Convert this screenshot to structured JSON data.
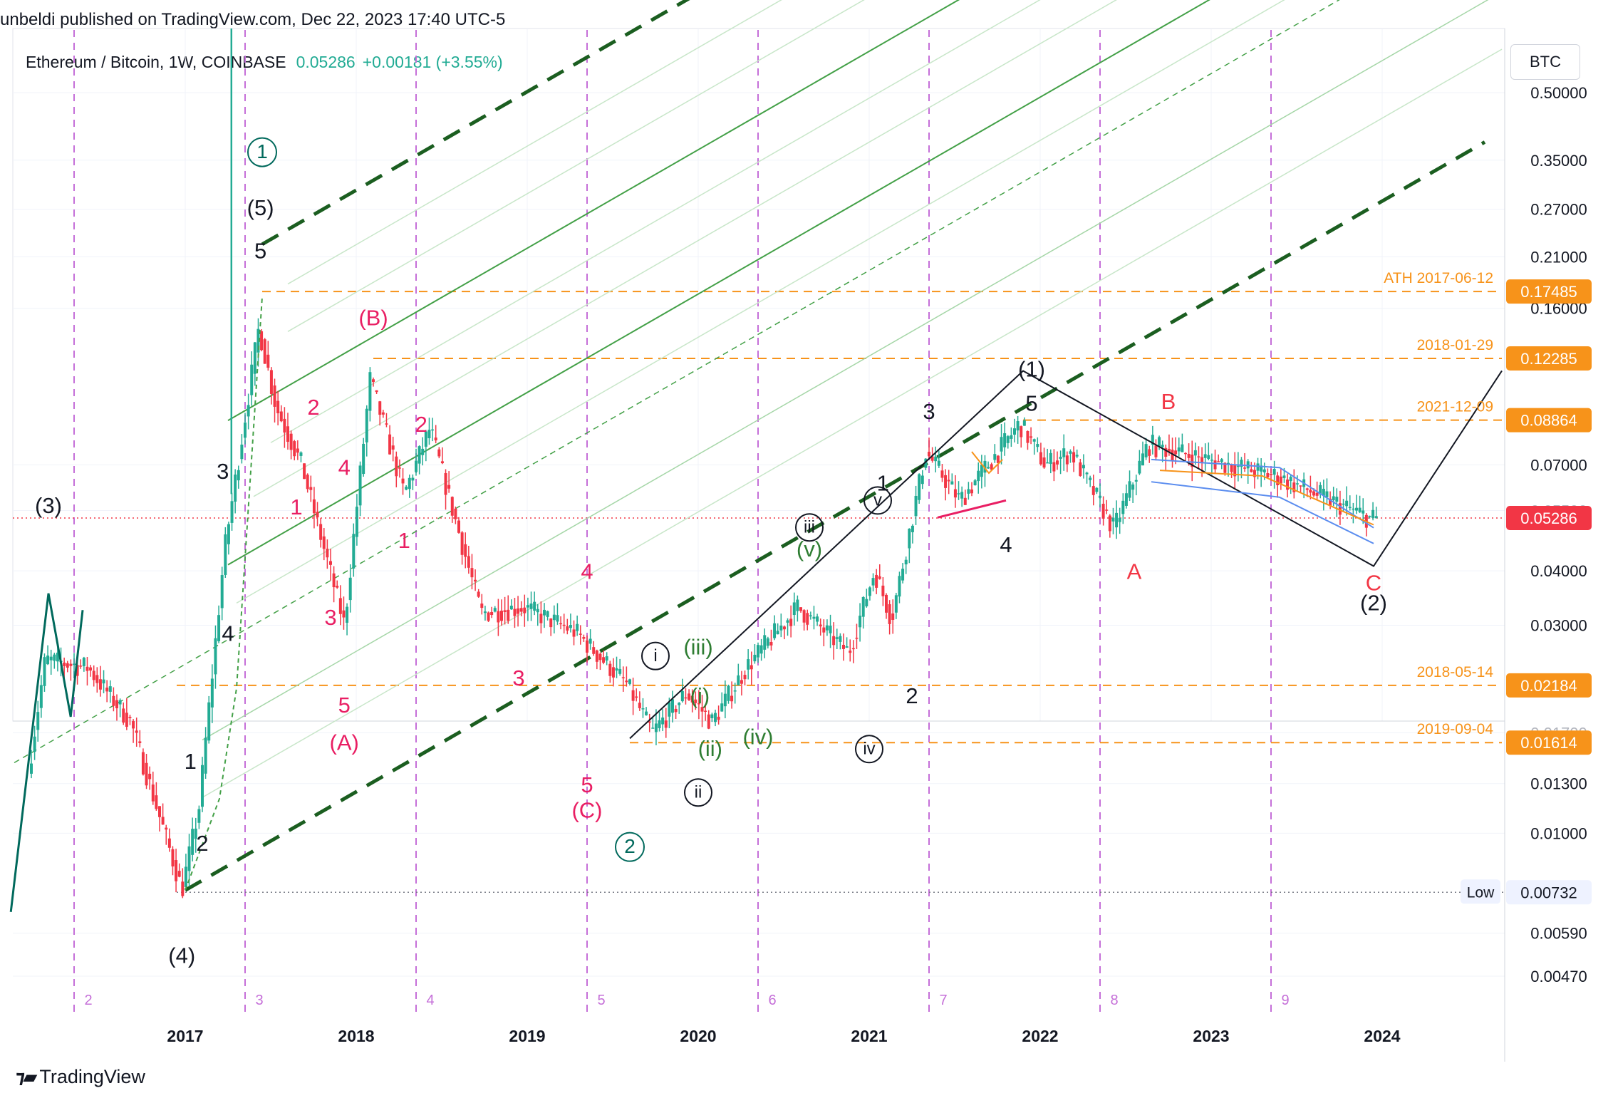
{
  "header": {
    "published": "unbeldi published on TradingView.com, Dec 22, 2023 17:40 UTC-5",
    "symbol": "Ethereum / Bitcoin, 1W, COINBASE",
    "price": "0.05286",
    "change": "+0.00181 (+3.55%)"
  },
  "axis": {
    "currency_button": "BTC"
  },
  "footer": {
    "brand": "TradingView"
  },
  "colors": {
    "up": "#22ab94",
    "down": "#f23645",
    "orange": "#f7931a",
    "dark_green": "#1b5e20",
    "green": "#43a047",
    "magenta": "#e91e63",
    "vline": "#c56fd8",
    "blue": "#5b8def"
  },
  "chart_data": {
    "type": "candlestick",
    "scale": "log",
    "x_ticks": [
      "2017",
      "2018",
      "2019",
      "2020",
      "2021",
      "2022",
      "2023",
      "2024"
    ],
    "y_ticks": [
      "0.50000",
      "0.35000",
      "0.27000",
      "0.21000",
      "0.16000",
      "0.07000",
      "0.04000",
      "0.03000",
      "0.01300",
      "0.01000",
      "0.00590",
      "0.00470"
    ],
    "y_ticks_partial": [
      "0.05500",
      "0.01700"
    ],
    "y_tick_values": [
      0.5,
      0.35,
      0.27,
      0.21,
      0.16,
      0.07,
      0.04,
      0.03,
      0.013,
      0.01,
      0.0059,
      0.0047,
      0.055,
      0.017
    ],
    "price_labels": [
      {
        "value": "0.17485",
        "note": "ATH 2017-06-12"
      },
      {
        "value": "0.12285",
        "note": "2018-01-29"
      },
      {
        "value": "0.08864",
        "note": "2021-12-09"
      },
      {
        "value": "0.02184",
        "note": "2018-05-14"
      },
      {
        "value": "0.01614",
        "note": "2019-09-04"
      }
    ],
    "current": {
      "label": "0.05286",
      "value": 0.05286
    },
    "low": {
      "tag": "Low",
      "value": "0.00732"
    },
    "cycle_numbers": [
      "2",
      "3",
      "4",
      "5",
      "6",
      "7",
      "8",
      "9"
    ],
    "cycle_years": [
      2016.35,
      2017.35,
      2018.35,
      2019.35,
      2020.35,
      2021.35,
      2022.35,
      2023.35
    ],
    "key_points": [
      {
        "t": 2016.0,
        "p": 0.0075
      },
      {
        "t": 2016.2,
        "p": 0.025
      },
      {
        "t": 2016.45,
        "p": 0.024
      },
      {
        "t": 2016.7,
        "p": 0.018
      },
      {
        "t": 2017.0,
        "p": 0.0074
      },
      {
        "t": 2017.1,
        "p": 0.0115
      },
      {
        "t": 2017.25,
        "p": 0.045
      },
      {
        "t": 2017.45,
        "p": 0.145
      },
      {
        "t": 2017.55,
        "p": 0.095
      },
      {
        "t": 2017.7,
        "p": 0.07
      },
      {
        "t": 2017.95,
        "p": 0.03
      },
      {
        "t": 2018.1,
        "p": 0.11
      },
      {
        "t": 2018.3,
        "p": 0.06
      },
      {
        "t": 2018.45,
        "p": 0.085
      },
      {
        "t": 2018.75,
        "p": 0.032
      },
      {
        "t": 2019.0,
        "p": 0.033
      },
      {
        "t": 2019.3,
        "p": 0.029
      },
      {
        "t": 2019.6,
        "p": 0.022
      },
      {
        "t": 2019.75,
        "p": 0.017
      },
      {
        "t": 2019.95,
        "p": 0.021
      },
      {
        "t": 2020.1,
        "p": 0.018
      },
      {
        "t": 2020.3,
        "p": 0.024
      },
      {
        "t": 2020.6,
        "p": 0.033
      },
      {
        "t": 2020.9,
        "p": 0.026
      },
      {
        "t": 2021.05,
        "p": 0.04
      },
      {
        "t": 2021.15,
        "p": 0.031
      },
      {
        "t": 2021.35,
        "p": 0.075
      },
      {
        "t": 2021.55,
        "p": 0.058
      },
      {
        "t": 2021.9,
        "p": 0.087
      },
      {
        "t": 2022.05,
        "p": 0.07
      },
      {
        "t": 2022.2,
        "p": 0.075
      },
      {
        "t": 2022.45,
        "p": 0.05
      },
      {
        "t": 2022.65,
        "p": 0.078
      },
      {
        "t": 2023.0,
        "p": 0.072
      },
      {
        "t": 2023.4,
        "p": 0.066
      },
      {
        "t": 2023.95,
        "p": 0.0528
      }
    ],
    "waves": [
      {
        "t": 2016.2,
        "p": 0.056,
        "text": "(3)",
        "color": "#131722"
      },
      {
        "t": 2016.98,
        "p": 0.0052,
        "text": "(4)",
        "color": "#131722"
      },
      {
        "t": 2017.1,
        "p": 0.0094,
        "text": "2",
        "color": "#131722"
      },
      {
        "t": 2017.03,
        "p": 0.0145,
        "text": "1",
        "color": "#131722"
      },
      {
        "t": 2017.25,
        "p": 0.0285,
        "text": "4",
        "color": "#131722"
      },
      {
        "t": 2017.22,
        "p": 0.067,
        "text": "3",
        "color": "#131722"
      },
      {
        "t": 2017.44,
        "p": 0.215,
        "text": "5",
        "color": "#131722"
      },
      {
        "t": 2017.44,
        "p": 0.27,
        "text": "(5)",
        "color": "#131722"
      },
      {
        "t": 2017.65,
        "p": 0.0555,
        "text": "1",
        "color": "#e91e63"
      },
      {
        "t": 2017.75,
        "p": 0.094,
        "text": "2",
        "color": "#e91e63"
      },
      {
        "t": 2017.85,
        "p": 0.031,
        "text": "3",
        "color": "#e91e63"
      },
      {
        "t": 2017.93,
        "p": 0.0685,
        "text": "4",
        "color": "#e91e63"
      },
      {
        "t": 2017.93,
        "p": 0.0195,
        "text": "5",
        "color": "#e91e63"
      },
      {
        "t": 2017.93,
        "p": 0.016,
        "text": "(A)",
        "color": "#e91e63"
      },
      {
        "t": 2018.1,
        "p": 0.151,
        "text": "(B)",
        "color": "#e91e63"
      },
      {
        "t": 2018.28,
        "p": 0.0465,
        "text": "1",
        "color": "#e91e63"
      },
      {
        "t": 2018.38,
        "p": 0.086,
        "text": "2",
        "color": "#e91e63"
      },
      {
        "t": 2018.95,
        "p": 0.0225,
        "text": "3",
        "color": "#e91e63"
      },
      {
        "t": 2019.35,
        "p": 0.0395,
        "text": "4",
        "color": "#e91e63"
      },
      {
        "t": 2019.35,
        "p": 0.0128,
        "text": "5",
        "color": "#e91e63"
      },
      {
        "t": 2019.35,
        "p": 0.0112,
        "text": "(C)",
        "color": "#e91e63"
      },
      {
        "t": 2020.0,
        "p": 0.0265,
        "text": "(iii)",
        "color": "#2e7d32"
      },
      {
        "t": 2020.01,
        "p": 0.0205,
        "text": "(i)",
        "color": "#2e7d32"
      },
      {
        "t": 2020.07,
        "p": 0.0155,
        "text": "(ii)",
        "color": "#2e7d32"
      },
      {
        "t": 2020.35,
        "p": 0.0165,
        "text": "(iv)",
        "color": "#2e7d32"
      },
      {
        "t": 2020.65,
        "p": 0.0445,
        "text": "(v)",
        "color": "#2e7d32"
      },
      {
        "t": 2021.08,
        "p": 0.063,
        "text": "1",
        "color": "#131722"
      },
      {
        "t": 2021.25,
        "p": 0.0205,
        "text": "2",
        "color": "#131722"
      },
      {
        "t": 2021.35,
        "p": 0.092,
        "text": "3",
        "color": "#131722"
      },
      {
        "t": 2021.8,
        "p": 0.0455,
        "text": "4",
        "color": "#131722"
      },
      {
        "t": 2021.95,
        "p": 0.096,
        "text": "5",
        "color": "#131722"
      },
      {
        "t": 2021.95,
        "p": 0.115,
        "text": "(1)",
        "color": "#131722"
      },
      {
        "t": 2022.55,
        "p": 0.0395,
        "text": "A",
        "color": "#f23645"
      },
      {
        "t": 2022.75,
        "p": 0.097,
        "text": "B",
        "color": "#f23645"
      },
      {
        "t": 2023.95,
        "p": 0.0372,
        "text": "C",
        "color": "#f23645"
      },
      {
        "t": 2023.95,
        "p": 0.0335,
        "text": "(2)",
        "color": "#131722"
      }
    ],
    "circled": [
      {
        "t": 2017.45,
        "p": 0.365,
        "text": "1",
        "style": "teal"
      },
      {
        "t": 2019.6,
        "p": 0.0093,
        "text": "2",
        "style": "teal"
      },
      {
        "t": 2019.75,
        "p": 0.0255,
        "text": "i",
        "style": "black"
      },
      {
        "t": 2020.0,
        "p": 0.0124,
        "text": "ii",
        "style": "black"
      },
      {
        "t": 2020.65,
        "p": 0.0503,
        "text": "iii",
        "style": "black"
      },
      {
        "t": 2021.0,
        "p": 0.0156,
        "text": "iv",
        "style": "black"
      },
      {
        "t": 2021.05,
        "p": 0.058,
        "text": "v",
        "style": "black"
      }
    ]
  }
}
